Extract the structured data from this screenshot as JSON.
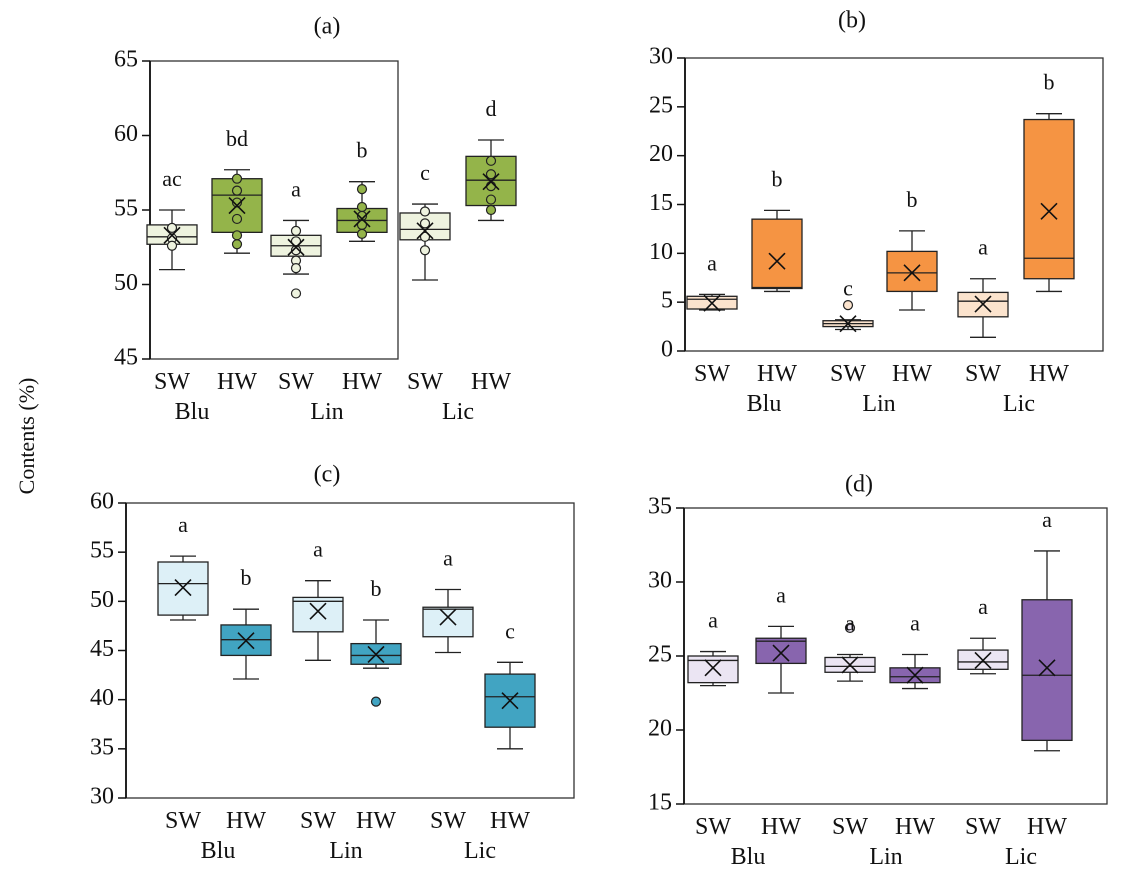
{
  "figure": {
    "ylabel": "Contents (%)"
  },
  "chart_data": [
    {
      "type": "box",
      "title": "(a)",
      "ylim": [
        45,
        65
      ],
      "yticks": [
        "45",
        "50",
        "55",
        "60",
        "65"
      ],
      "categories": [
        "SW",
        "HW",
        "SW",
        "HW",
        "SW",
        "HW"
      ],
      "groups": [
        "Blu",
        "Lin",
        "Lic"
      ],
      "colors": [
        "#eef3df",
        "#94b44a",
        "#eef3df",
        "#94b44a",
        "#eef3df",
        "#94b44a"
      ],
      "boxes": [
        {
          "min": 51.0,
          "q1": 52.7,
          "median": 53.2,
          "q3": 54.0,
          "max": 55.0,
          "mean": 53.3,
          "letter": "ac",
          "points": [
            53.8,
            53.1,
            52.6
          ]
        },
        {
          "min": 52.1,
          "q1": 53.5,
          "median": 56.0,
          "q3": 57.1,
          "max": 57.7,
          "mean": 55.3,
          "letter": "bd",
          "points": [
            57.1,
            56.3,
            55.5,
            54.4,
            53.3,
            52.7
          ]
        },
        {
          "min": 50.7,
          "q1": 51.9,
          "median": 52.6,
          "q3": 53.3,
          "max": 54.3,
          "mean": 52.5,
          "letter": "a",
          "points": [
            53.6,
            52.9,
            52.3,
            51.6,
            51.1,
            49.4
          ]
        },
        {
          "min": 52.9,
          "q1": 53.5,
          "median": 54.3,
          "q3": 55.1,
          "max": 56.9,
          "mean": 54.4,
          "letter": "b",
          "points": [
            56.4,
            55.2,
            54.6,
            54.0,
            53.4
          ]
        },
        {
          "min": 50.3,
          "q1": 53.0,
          "median": 53.7,
          "q3": 54.8,
          "max": 55.4,
          "mean": 53.6,
          "letter": "c",
          "points": [
            54.9,
            54.1,
            53.2,
            52.3
          ]
        },
        {
          "min": 54.3,
          "q1": 55.3,
          "median": 57.0,
          "q3": 58.6,
          "max": 59.7,
          "mean": 56.9,
          "letter": "d",
          "points": [
            58.3,
            57.4,
            56.6,
            55.7,
            55.0
          ]
        }
      ]
    },
    {
      "type": "box",
      "title": "(b)",
      "ylim": [
        0,
        30
      ],
      "yticks": [
        "0",
        "5",
        "10",
        "15",
        "20",
        "25",
        "30"
      ],
      "categories": [
        "SW",
        "HW",
        "SW",
        "HW",
        "SW",
        "HW"
      ],
      "groups": [
        "Blu",
        "Lin",
        "Lic"
      ],
      "colors": [
        "#fbe3cd",
        "#f59443",
        "#fbe3cd",
        "#f59443",
        "#fbe3cd",
        "#f59443"
      ],
      "boxes": [
        {
          "min": 4.2,
          "q1": 4.3,
          "median": 5.3,
          "q3": 5.6,
          "max": 5.8,
          "mean": 4.9,
          "letter": "a",
          "points": []
        },
        {
          "min": 6.1,
          "q1": 6.4,
          "median": 6.5,
          "q3": 13.5,
          "max": 14.4,
          "mean": 9.2,
          "letter": "b",
          "points": []
        },
        {
          "min": 2.2,
          "q1": 2.5,
          "median": 2.8,
          "q3": 3.1,
          "max": 3.2,
          "mean": 2.8,
          "letter": "c",
          "points": [
            4.7
          ]
        },
        {
          "min": 4.2,
          "q1": 6.1,
          "median": 8.0,
          "q3": 10.2,
          "max": 12.3,
          "mean": 8.0,
          "letter": "b",
          "points": []
        },
        {
          "min": 1.4,
          "q1": 3.5,
          "median": 5.1,
          "q3": 6.0,
          "max": 7.4,
          "mean": 4.8,
          "letter": "a",
          "points": []
        },
        {
          "min": 6.1,
          "q1": 7.4,
          "median": 9.5,
          "q3": 23.7,
          "max": 24.3,
          "mean": 14.3,
          "letter": "b",
          "points": []
        }
      ]
    },
    {
      "type": "box",
      "title": "(c)",
      "ylim": [
        30,
        60
      ],
      "yticks": [
        "30",
        "35",
        "40",
        "45",
        "50",
        "55",
        "60"
      ],
      "categories": [
        "SW",
        "HW",
        "SW",
        "HW",
        "SW",
        "HW"
      ],
      "groups": [
        "Blu",
        "Lin",
        "Lic"
      ],
      "colors": [
        "#ddf0f7",
        "#41a4c2",
        "#ddf0f7",
        "#41a4c2",
        "#ddf0f7",
        "#41a4c2"
      ],
      "boxes": [
        {
          "min": 48.1,
          "q1": 48.6,
          "median": 51.8,
          "q3": 54.0,
          "max": 54.6,
          "mean": 51.4,
          "letter": "a",
          "points": []
        },
        {
          "min": 42.1,
          "q1": 44.5,
          "median": 46.1,
          "q3": 47.6,
          "max": 49.2,
          "mean": 46.0,
          "letter": "b",
          "points": []
        },
        {
          "min": 44.0,
          "q1": 46.9,
          "median": 50.0,
          "q3": 50.4,
          "max": 52.1,
          "mean": 49.0,
          "letter": "a",
          "points": []
        },
        {
          "min": 43.2,
          "q1": 43.6,
          "median": 44.5,
          "q3": 45.7,
          "max": 48.1,
          "mean": 44.6,
          "letter": "b",
          "points": [
            39.8
          ]
        },
        {
          "min": 44.8,
          "q1": 46.4,
          "median": 49.2,
          "q3": 49.4,
          "max": 51.2,
          "mean": 48.4,
          "letter": "a",
          "points": []
        },
        {
          "min": 35.0,
          "q1": 37.2,
          "median": 40.3,
          "q3": 42.6,
          "max": 43.8,
          "mean": 39.9,
          "letter": "c",
          "points": []
        }
      ]
    },
    {
      "type": "box",
      "title": "(d)",
      "ylim": [
        15,
        35
      ],
      "yticks": [
        "15",
        "20",
        "25",
        "30",
        "35"
      ],
      "categories": [
        "SW",
        "HW",
        "SW",
        "HW",
        "SW",
        "HW"
      ],
      "groups": [
        "Blu",
        "Lin",
        "Lic"
      ],
      "colors": [
        "#ebe5f3",
        "#8865ae",
        "#ebe5f3",
        "#8865ae",
        "#ebe5f3",
        "#8865ae"
      ],
      "boxes": [
        {
          "min": 23.0,
          "q1": 23.2,
          "median": 24.7,
          "q3": 25.0,
          "max": 25.3,
          "mean": 24.2,
          "letter": "a",
          "points": []
        },
        {
          "min": 22.5,
          "q1": 24.5,
          "median": 26.0,
          "q3": 26.2,
          "max": 27.0,
          "mean": 25.2,
          "letter": "a",
          "points": []
        },
        {
          "min": 23.3,
          "q1": 23.9,
          "median": 24.3,
          "q3": 24.9,
          "max": 25.1,
          "mean": 24.4,
          "letter": "a",
          "points": [
            26.9
          ]
        },
        {
          "min": 22.8,
          "q1": 23.2,
          "median": 23.6,
          "q3": 24.2,
          "max": 25.1,
          "mean": 23.7,
          "letter": "a",
          "points": []
        },
        {
          "min": 23.8,
          "q1": 24.1,
          "median": 24.6,
          "q3": 25.4,
          "max": 26.2,
          "mean": 24.7,
          "letter": "a",
          "points": []
        },
        {
          "min": 18.6,
          "q1": 19.3,
          "median": 23.7,
          "q3": 28.8,
          "max": 32.1,
          "mean": 24.2,
          "letter": "a",
          "points": []
        }
      ]
    }
  ]
}
